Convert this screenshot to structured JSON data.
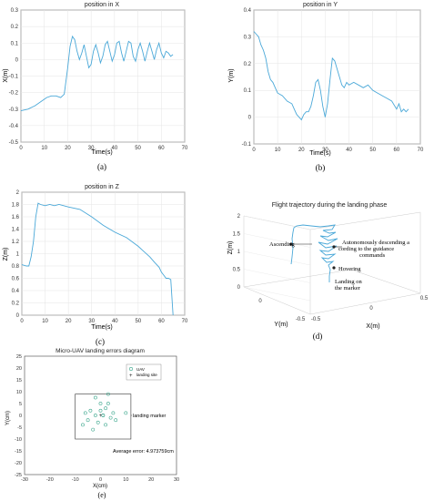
{
  "chart_data": [
    {
      "type": "line",
      "title": "position in X",
      "xlabel": "Time(s)",
      "ylabel": "X(m)",
      "xlim": [
        0,
        70
      ],
      "ylim": [
        -0.5,
        0.3
      ],
      "xticks": [
        0,
        10,
        20,
        30,
        40,
        50,
        60,
        70
      ],
      "yticks": [
        -0.5,
        -0.4,
        -0.3,
        -0.2,
        -0.1,
        0,
        0.1,
        0.2,
        0.3
      ],
      "grid": true,
      "caption": "(a)",
      "series": [
        {
          "color": "#4aa8d8",
          "x": [
            0,
            3,
            6,
            9,
            11,
            13,
            15,
            17,
            18.5,
            20,
            21,
            22,
            23,
            24,
            25,
            26,
            27,
            28,
            29,
            30,
            31,
            32,
            33,
            34,
            35,
            36,
            37,
            38,
            39,
            40,
            41,
            42,
            43,
            44,
            45,
            46,
            47,
            48,
            49,
            50,
            51,
            52,
            53,
            54,
            55,
            56,
            57,
            58,
            59,
            60,
            61,
            62,
            63,
            64,
            65
          ],
          "y": [
            -0.31,
            -0.3,
            -0.28,
            -0.25,
            -0.23,
            -0.22,
            -0.22,
            -0.23,
            -0.21,
            -0.05,
            0.08,
            0.14,
            0.12,
            0.05,
            0,
            0.04,
            0.09,
            0.02,
            -0.05,
            -0.03,
            0.05,
            0.09,
            0.04,
            -0.02,
            0.02,
            0.09,
            0.11,
            0.05,
            -0.01,
            0.03,
            0.1,
            0.11,
            0.04,
            -0.01,
            0.05,
            0.11,
            0.1,
            0.02,
            -0.01,
            0.06,
            0.1,
            0.05,
            -0.01,
            0.05,
            0.1,
            0.05,
            0,
            0.06,
            0.1,
            0.04,
            0.01,
            0.05,
            0.04,
            0.02,
            0.03
          ]
        }
      ]
    },
    {
      "type": "line",
      "title": "position in Y",
      "xlabel": "Time(s)",
      "ylabel": "Y(m)",
      "xlim": [
        0,
        70
      ],
      "ylim": [
        -0.1,
        0.4
      ],
      "xticks": [
        0,
        10,
        20,
        30,
        40,
        50,
        60,
        70
      ],
      "yticks": [
        -0.1,
        0,
        0.1,
        0.2,
        0.3,
        0.4
      ],
      "grid": true,
      "caption": "(b)",
      "series": [
        {
          "color": "#4aa8d8",
          "x": [
            0,
            1,
            2,
            3,
            4,
            5,
            6,
            7,
            8,
            9,
            10,
            12,
            14,
            16,
            17,
            18,
            19,
            20,
            21,
            22,
            23,
            24,
            25,
            26,
            27,
            28,
            29,
            30,
            31,
            32,
            33,
            34,
            35,
            36,
            37,
            38,
            39,
            40,
            42,
            44,
            46,
            48,
            50,
            52,
            54,
            56,
            58,
            60,
            61,
            62,
            63,
            64,
            65
          ],
          "y": [
            0.32,
            0.31,
            0.3,
            0.27,
            0.25,
            0.22,
            0.17,
            0.14,
            0.13,
            0.11,
            0.09,
            0.08,
            0.06,
            0.05,
            0.03,
            0.01,
            0,
            -0.01,
            0.01,
            0.02,
            0.02,
            0.04,
            0.08,
            0.13,
            0.14,
            0.1,
            0.04,
            0,
            0.05,
            0.14,
            0.22,
            0.21,
            0.18,
            0.15,
            0.12,
            0.11,
            0.13,
            0.12,
            0.13,
            0.12,
            0.11,
            0.12,
            0.1,
            0.09,
            0.08,
            0.07,
            0.06,
            0.03,
            0.05,
            0.02,
            0.03,
            0.02,
            0.03
          ]
        }
      ]
    },
    {
      "type": "line",
      "title": "position in Z",
      "xlabel": "Time(s)",
      "ylabel": "Z(m)",
      "xlim": [
        0,
        70
      ],
      "ylim": [
        0,
        2
      ],
      "xticks": [
        0,
        10,
        20,
        30,
        40,
        50,
        60,
        70
      ],
      "yticks": [
        0,
        0.2,
        0.4,
        0.6,
        0.8,
        1,
        1.2,
        1.4,
        1.6,
        1.8,
        2
      ],
      "grid": true,
      "caption": "(c)",
      "series": [
        {
          "color": "#4aa8d8",
          "x": [
            0,
            2,
            3,
            4,
            5,
            6,
            7,
            8,
            10,
            12,
            14,
            16,
            18,
            20,
            25,
            30,
            35,
            40,
            45,
            50,
            52,
            55,
            57,
            59,
            60,
            61,
            62,
            63,
            64,
            65
          ],
          "y": [
            0.82,
            0.8,
            0.8,
            0.95,
            1.2,
            1.6,
            1.82,
            1.8,
            1.78,
            1.8,
            1.78,
            1.8,
            1.78,
            1.76,
            1.72,
            1.6,
            1.46,
            1.35,
            1.26,
            1.12,
            1.05,
            0.95,
            0.86,
            0.78,
            0.7,
            0.65,
            0.6,
            0.6,
            0.58,
            0
          ]
        }
      ]
    },
    {
      "type": "line",
      "title": "Flight trajectory during the landing phase",
      "xlabel": "X(m)",
      "ylabel": "Y(m)",
      "zlabel": "Z(m)",
      "xticks": [
        -0.5,
        0,
        0.5
      ],
      "yticks": [
        0,
        -0.5
      ],
      "zticks": [
        0,
        0.5,
        1,
        1.5,
        2
      ],
      "grid": true,
      "caption": "(d)",
      "annotations": [
        "Ascending",
        "Autonomously descending according to the guidance commands",
        "Hovering",
        "Landing on the marker"
      ]
    },
    {
      "type": "scatter",
      "title": "Micro-UAV landing errors diagram",
      "xlabel": "X(cm)",
      "ylabel": "Y(cm)",
      "xlim": [
        -30,
        30
      ],
      "ylim": [
        -25,
        25
      ],
      "xticks": [
        -30,
        -20,
        -10,
        0,
        10,
        20,
        30
      ],
      "yticks": [
        -25,
        -20,
        -15,
        -10,
        -5,
        0,
        5,
        10,
        15,
        20,
        25
      ],
      "legend_position": "top-right",
      "legend": [
        {
          "name": "UAV",
          "symbol": "o",
          "color": "#3aa68c"
        },
        {
          "name": "landing site",
          "symbol": "+",
          "color": "#222222"
        }
      ],
      "series": [
        {
          "name": "UAV",
          "x": [
            -7,
            -2,
            3,
            0,
            -4,
            2,
            5,
            -5,
            -1,
            1,
            4,
            -6,
            0,
            3,
            6,
            -3,
            2,
            10,
            -2,
            1
          ],
          "y": [
            -4,
            7.5,
            9,
            5,
            2,
            3,
            1,
            -2,
            -3,
            0,
            -1,
            1,
            2,
            5,
            -2,
            -6,
            -4,
            1,
            0,
            0
          ]
        },
        {
          "name": "landing site",
          "x": [
            0
          ],
          "y": [
            0
          ]
        }
      ],
      "annotations": [
        "landing marker",
        "Average error: 4.973759cm"
      ],
      "marker_box": {
        "x": [
          -10,
          12
        ],
        "y": [
          -10,
          9
        ]
      },
      "caption": "(e)"
    }
  ]
}
